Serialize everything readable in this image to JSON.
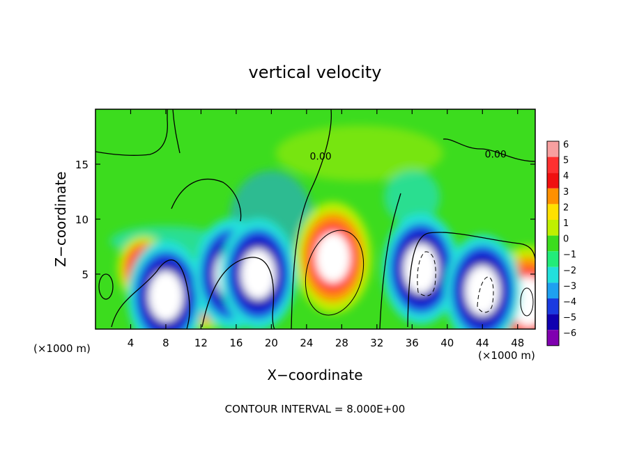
{
  "chart_data": {
    "type": "heatmap",
    "title": "vertical velocity",
    "xlabel": "X−coordinate",
    "ylabel": "Z−coordinate",
    "x_unit_left": "(×1000 m)",
    "x_unit_right": "(×1000 m)",
    "footer": "CONTOUR INTERVAL = 8.000E+00",
    "xlim": [
      0,
      50
    ],
    "ylim": [
      0,
      20
    ],
    "x_ticks": [
      4,
      8,
      12,
      16,
      20,
      24,
      28,
      32,
      36,
      40,
      44,
      48
    ],
    "x_tick_labels": [
      "4",
      "8",
      "12",
      "16",
      "20",
      "24",
      "28",
      "32",
      "36",
      "40",
      "44",
      "48"
    ],
    "y_ticks": [
      5,
      10,
      15
    ],
    "y_tick_labels": [
      "5",
      "10",
      "15"
    ],
    "contour_labels": [
      {
        "text": "0.00",
        "x": 25.6,
        "y": 15.4
      },
      {
        "text": "0.00",
        "x": 45.5,
        "y": 15.6
      }
    ],
    "colorbar": {
      "levels": [
        6,
        5,
        4,
        3,
        2,
        1,
        0,
        -1,
        -2,
        -3,
        -4,
        -5,
        -6
      ],
      "labels": [
        "6",
        "5",
        "4",
        "3",
        "2",
        "1",
        "0",
        "−1",
        "−2",
        "−3",
        "−4",
        "−5",
        "−6"
      ],
      "colors": [
        "#f7a0a0",
        "#ff3030",
        "#f01010",
        "#ff9000",
        "#ffe000",
        "#bff000",
        "#3cdc1e",
        "#22ec7a",
        "#22e0dc",
        "#1ea0f0",
        "#1a3ae0",
        "#1000b0",
        "#8000b0"
      ]
    },
    "features": [
      {
        "name": "updraft-core-center",
        "sign": "positive",
        "x": 27.0,
        "y": 6.5,
        "peak": 8
      },
      {
        "name": "updraft-left",
        "sign": "positive",
        "x": 5.5,
        "y": 5.5,
        "peak": 4.5
      },
      {
        "name": "updraft-right-edge",
        "sign": "positive",
        "x": 49.2,
        "y": 2.5,
        "peak": 8
      },
      {
        "name": "updraft-mid",
        "sign": "positive",
        "x": 12.5,
        "y": 3.0,
        "peak": 3.5
      },
      {
        "name": "downdraft-left",
        "sign": "negative",
        "x": 8.0,
        "y": 3.0,
        "peak": -8
      },
      {
        "name": "downdraft-16",
        "sign": "negative",
        "x": 15.5,
        "y": 5.0,
        "peak": -8
      },
      {
        "name": "downdraft-18",
        "sign": "negative",
        "x": 18.5,
        "y": 5.0,
        "peak": -8
      },
      {
        "name": "downdraft-right-36",
        "sign": "negative",
        "x": 37.0,
        "y": 5.5,
        "peak": -9
      },
      {
        "name": "downdraft-right-44",
        "sign": "negative",
        "x": 44.0,
        "y": 3.5,
        "peak": -8
      }
    ]
  }
}
